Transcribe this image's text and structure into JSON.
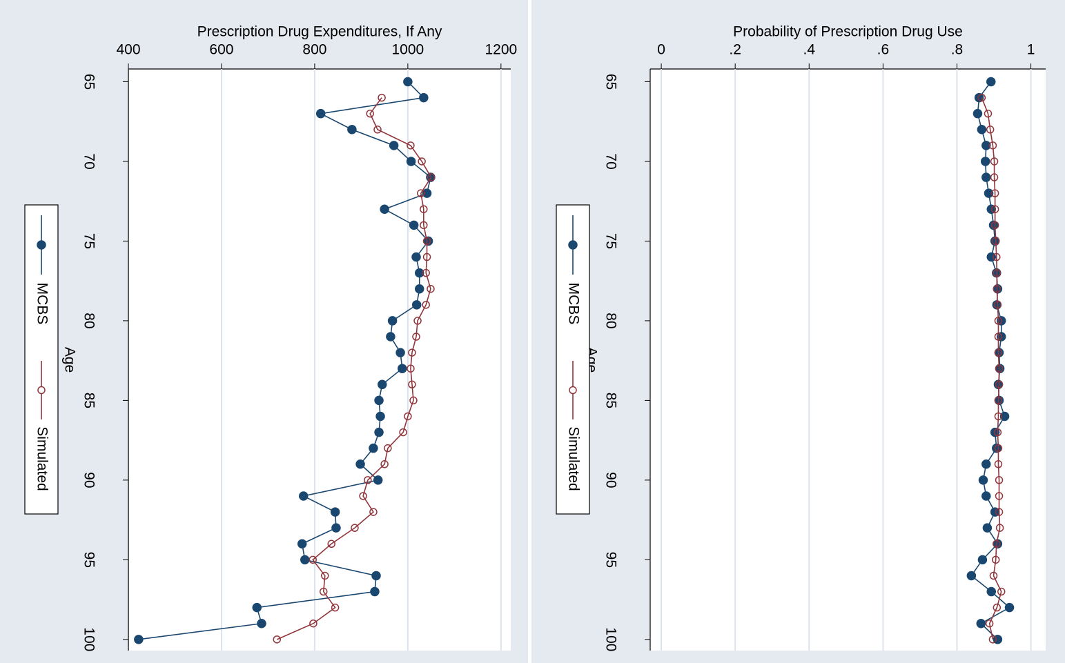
{
  "chart_data": [
    {
      "type": "line",
      "orientation": "horizontal",
      "x_label": "Age",
      "y_label": "Prescription Drug Expenditures, If Any",
      "x": [
        65,
        66,
        67,
        68,
        69,
        70,
        71,
        72,
        73,
        74,
        75,
        76,
        77,
        78,
        79,
        80,
        81,
        82,
        83,
        84,
        85,
        86,
        87,
        88,
        89,
        90,
        91,
        92,
        93,
        94,
        95,
        96,
        97,
        98,
        99,
        100
      ],
      "xlim": [
        64.2,
        100.7
      ],
      "xticks": [
        65,
        70,
        75,
        80,
        85,
        90,
        95,
        100
      ],
      "ylim": [
        400,
        1221
      ],
      "yticks": [
        400,
        600,
        800,
        1000,
        1200
      ],
      "grid": true,
      "series": [
        {
          "name": "MCBS",
          "color": "#1a476f",
          "marker": "filled",
          "values": [
            1000,
            1034,
            813,
            880,
            970,
            1007,
            1049,
            1041,
            950,
            1013,
            1044,
            1018,
            1025,
            1025,
            1019,
            967,
            963,
            984,
            988,
            945,
            938,
            941,
            938,
            926,
            898,
            936,
            776,
            844,
            846,
            773,
            779,
            932,
            929,
            676,
            686,
            422
          ]
        },
        {
          "name": "Simulated",
          "color": "#90353b",
          "marker": "hollow",
          "values": [
            null,
            944,
            919,
            935,
            1006,
            1030,
            1050,
            1028,
            1034,
            1034,
            1041,
            1041,
            1039,
            1049,
            1039,
            1021,
            1018,
            1009,
            1006,
            1009,
            1012,
            1000,
            990,
            957,
            950,
            914,
            904,
            926,
            886,
            836,
            796,
            822,
            819,
            844,
            797,
            719
          ]
        }
      ]
    },
    {
      "type": "line",
      "orientation": "horizontal",
      "x_label": "Age",
      "y_label": "Probability of Prescription Drug Use",
      "x": [
        65,
        66,
        67,
        68,
        69,
        70,
        71,
        72,
        73,
        74,
        75,
        76,
        77,
        78,
        79,
        80,
        81,
        82,
        83,
        84,
        85,
        86,
        87,
        88,
        89,
        90,
        91,
        92,
        93,
        94,
        95,
        96,
        97,
        98,
        99,
        100
      ],
      "xlim": [
        64.2,
        100.7
      ],
      "xticks": [
        65,
        70,
        75,
        80,
        85,
        90,
        95,
        100
      ],
      "ylim": [
        -0.03,
        1.04
      ],
      "yticks": [
        0,
        {
          "value": 0.2,
          "label": ".2"
        },
        {
          "value": 0.4,
          "label": ".4"
        },
        {
          "value": 0.6,
          "label": ".6"
        },
        {
          "value": 0.8,
          "label": ".8"
        },
        1
      ],
      "grid": true,
      "series": [
        {
          "name": "MCBS",
          "color": "#1a476f",
          "marker": "filled",
          "values": [
            0.892,
            0.86,
            0.856,
            0.867,
            0.879,
            0.877,
            0.879,
            0.886,
            0.893,
            0.899,
            0.903,
            0.893,
            0.907,
            0.91,
            0.908,
            0.92,
            0.92,
            0.914,
            0.916,
            0.912,
            0.914,
            0.929,
            0.903,
            0.907,
            0.879,
            0.871,
            0.879,
            0.903,
            0.882,
            0.91,
            0.869,
            0.839,
            0.893,
            0.942,
            0.865,
            0.91
          ]
        },
        {
          "name": "Simulated",
          "color": "#90353b",
          "marker": "hollow",
          "values": [
            null,
            0.867,
            0.884,
            0.89,
            0.897,
            0.901,
            0.901,
            0.903,
            0.903,
            0.903,
            0.905,
            0.907,
            0.908,
            0.908,
            0.91,
            0.912,
            0.912,
            0.912,
            0.914,
            0.914,
            0.912,
            0.912,
            0.91,
            0.912,
            0.912,
            0.914,
            0.914,
            0.914,
            0.916,
            0.907,
            0.905,
            0.899,
            0.92,
            0.908,
            0.888,
            0.897
          ]
        }
      ]
    }
  ]
}
